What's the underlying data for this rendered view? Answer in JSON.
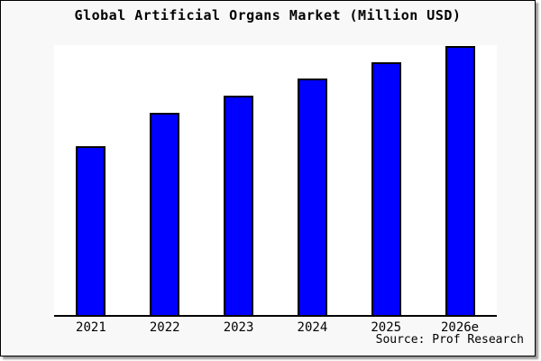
{
  "title": "Global Artificial Organs Market (Million USD)",
  "source": "Source: Prof Research",
  "colors": {
    "bar_fill": "#0000ff",
    "bar_border": "#000000",
    "canvas_background": "#f8f8f8",
    "plot_background": "#ffffff",
    "axis": "#000000",
    "text": "#000000"
  },
  "chart_data": {
    "type": "bar",
    "title": "Global Artificial Organs Market (Million USD)",
    "categories": [
      "2021",
      "2022",
      "2023",
      "2024",
      "2025",
      "2026e"
    ],
    "values": [
      62.7,
      75.0,
      81.3,
      87.7,
      93.7,
      99.7
    ],
    "ylim": [
      0,
      100
    ],
    "xlabel": "",
    "ylabel": "",
    "y_axis_visible": false,
    "y_tick_labels_visible": false,
    "grid": false,
    "legend": false,
    "annotations": [
      "Source: Prof Research"
    ]
  }
}
